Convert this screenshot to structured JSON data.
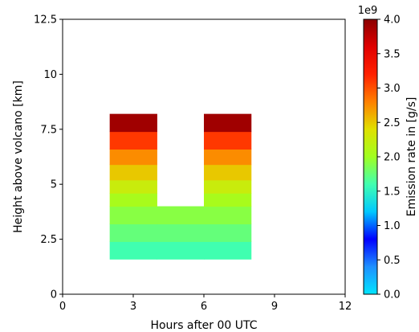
{
  "chart_data": {
    "type": "heatmap",
    "title": "",
    "xlabel": "Hours after 00 UTC",
    "ylabel": "Height above volcano [km]",
    "xlim": [
      0,
      12
    ],
    "ylim": [
      0,
      12.5
    ],
    "x_ticks": [
      0,
      3,
      6,
      9,
      12
    ],
    "x_tick_labels": [
      "0",
      "3",
      "6",
      "9",
      "12"
    ],
    "y_ticks": [
      0,
      2.5,
      5,
      7.5,
      10,
      12.5
    ],
    "y_tick_labels": [
      "0",
      "2.5",
      "5",
      "7.5",
      "10",
      "12.5"
    ],
    "grid": false,
    "colorbar": {
      "label": "Emission rate in [g/s]",
      "multiplier": "1e9",
      "min": 0.0,
      "max": 4.0,
      "ticks": [
        0.0,
        0.5,
        1.0,
        1.5,
        2.0,
        2.5,
        3.0,
        3.5,
        4.0
      ],
      "tick_labels": [
        "0.0",
        "0.5",
        "1.0",
        "1.5",
        "2.0",
        "2.5",
        "3.0",
        "3.5",
        "4.0"
      ],
      "colormap": [
        "#00e5ff",
        "#1e90ff",
        "#0000ff",
        "#00c8ff",
        "#40ffb0",
        "#a0ff20",
        "#e0e000",
        "#ff8000",
        "#ff2000",
        "#e00000",
        "#8b0000"
      ]
    },
    "cells": [
      {
        "x0": 2,
        "x1": 4,
        "y0": 1.6,
        "y1": 2.4,
        "value": 1.6
      },
      {
        "x0": 2,
        "x1": 4,
        "y0": 2.4,
        "y1": 3.2,
        "value": 1.75
      },
      {
        "x0": 2,
        "x1": 4,
        "y0": 3.2,
        "y1": 4.0,
        "value": 1.9
      },
      {
        "x0": 2,
        "x1": 4,
        "y0": 4.0,
        "y1": 4.6,
        "value": 2.05
      },
      {
        "x0": 2,
        "x1": 4,
        "y0": 4.6,
        "y1": 5.2,
        "value": 2.25
      },
      {
        "x0": 2,
        "x1": 4,
        "y0": 5.2,
        "y1": 5.9,
        "value": 2.5
      },
      {
        "x0": 2,
        "x1": 4,
        "y0": 5.9,
        "y1": 6.6,
        "value": 2.75
      },
      {
        "x0": 2,
        "x1": 4,
        "y0": 6.6,
        "y1": 7.4,
        "value": 3.1
      },
      {
        "x0": 2,
        "x1": 4,
        "y0": 7.4,
        "y1": 8.2,
        "value": 3.9
      },
      {
        "x0": 4,
        "x1": 6,
        "y0": 1.6,
        "y1": 2.4,
        "value": 1.6
      },
      {
        "x0": 4,
        "x1": 6,
        "y0": 2.4,
        "y1": 3.2,
        "value": 1.75
      },
      {
        "x0": 4,
        "x1": 6,
        "y0": 3.2,
        "y1": 4.0,
        "value": 1.9
      },
      {
        "x0": 6,
        "x1": 8,
        "y0": 1.6,
        "y1": 2.4,
        "value": 1.6
      },
      {
        "x0": 6,
        "x1": 8,
        "y0": 2.4,
        "y1": 3.2,
        "value": 1.75
      },
      {
        "x0": 6,
        "x1": 8,
        "y0": 3.2,
        "y1": 4.0,
        "value": 1.9
      },
      {
        "x0": 6,
        "x1": 8,
        "y0": 4.0,
        "y1": 4.6,
        "value": 2.05
      },
      {
        "x0": 6,
        "x1": 8,
        "y0": 4.6,
        "y1": 5.2,
        "value": 2.25
      },
      {
        "x0": 6,
        "x1": 8,
        "y0": 5.2,
        "y1": 5.9,
        "value": 2.5
      },
      {
        "x0": 6,
        "x1": 8,
        "y0": 5.9,
        "y1": 6.6,
        "value": 2.75
      },
      {
        "x0": 6,
        "x1": 8,
        "y0": 6.6,
        "y1": 7.4,
        "value": 3.1
      },
      {
        "x0": 6,
        "x1": 8,
        "y0": 7.4,
        "y1": 8.2,
        "value": 3.9
      }
    ]
  }
}
